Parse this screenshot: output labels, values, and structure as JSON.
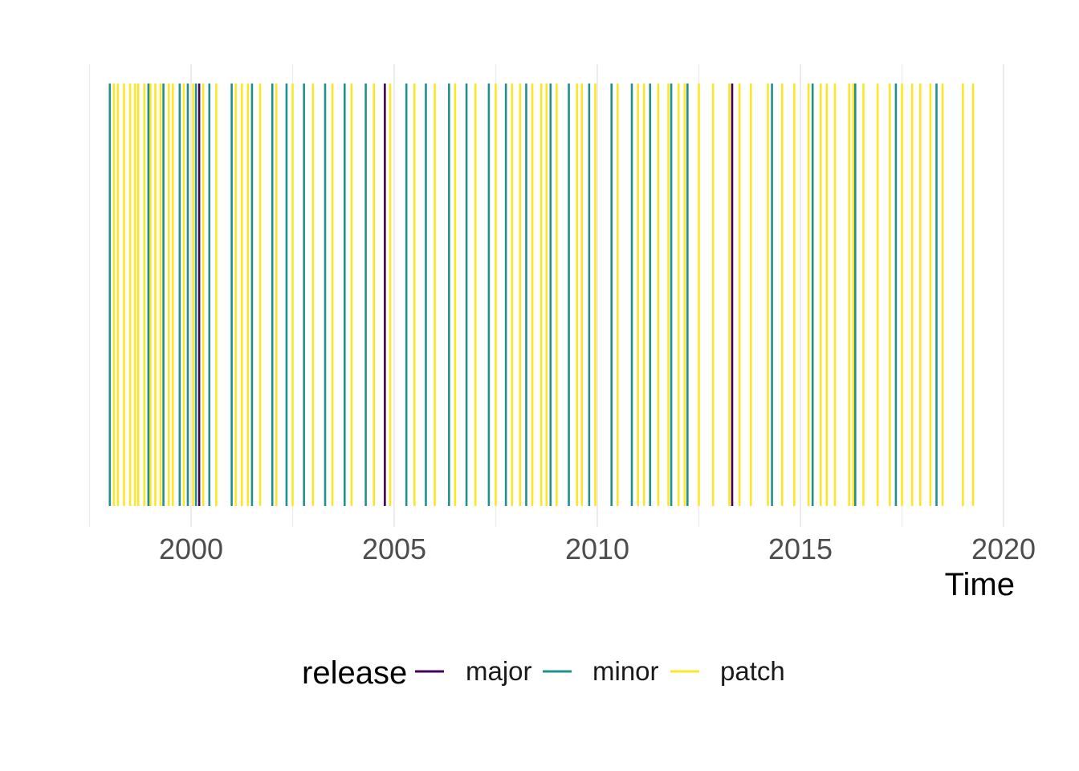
{
  "chart_data": {
    "type": "rug",
    "x_label": "Time",
    "x_ticks": [
      2000,
      2005,
      2010,
      2015,
      2020
    ],
    "xlim": [
      1997.5,
      2020
    ],
    "grid": "vertical major and minor gridlines only",
    "legend": {
      "title": "release",
      "position": "bottom",
      "entries": [
        {
          "label": "major",
          "color": "#440154"
        },
        {
          "label": "minor",
          "color": "#21908C"
        },
        {
          "label": "patch",
          "color": "#FDE725"
        }
      ]
    },
    "releases": [
      {
        "t": 1998.0,
        "type": "minor"
      },
      {
        "t": 1998.1,
        "type": "patch"
      },
      {
        "t": 1998.2,
        "type": "patch"
      },
      {
        "t": 1998.35,
        "type": "patch"
      },
      {
        "t": 1998.5,
        "type": "patch"
      },
      {
        "t": 1998.62,
        "type": "patch"
      },
      {
        "t": 1998.7,
        "type": "patch"
      },
      {
        "t": 1998.85,
        "type": "patch"
      },
      {
        "t": 1998.95,
        "type": "minor"
      },
      {
        "t": 1999.0,
        "type": "patch"
      },
      {
        "t": 1999.12,
        "type": "patch"
      },
      {
        "t": 1999.25,
        "type": "patch"
      },
      {
        "t": 1999.32,
        "type": "minor"
      },
      {
        "t": 1999.45,
        "type": "patch"
      },
      {
        "t": 1999.55,
        "type": "patch"
      },
      {
        "t": 1999.72,
        "type": "minor"
      },
      {
        "t": 1999.82,
        "type": "patch"
      },
      {
        "t": 1999.92,
        "type": "minor"
      },
      {
        "t": 2000.05,
        "type": "patch"
      },
      {
        "t": 2000.12,
        "type": "minor"
      },
      {
        "t": 2000.2,
        "type": "major"
      },
      {
        "t": 2000.3,
        "type": "patch"
      },
      {
        "t": 2000.45,
        "type": "minor"
      },
      {
        "t": 2000.62,
        "type": "patch"
      },
      {
        "t": 2001.0,
        "type": "minor"
      },
      {
        "t": 2001.1,
        "type": "patch"
      },
      {
        "t": 2001.25,
        "type": "patch"
      },
      {
        "t": 2001.4,
        "type": "patch"
      },
      {
        "t": 2001.5,
        "type": "minor"
      },
      {
        "t": 2001.7,
        "type": "patch"
      },
      {
        "t": 2002.0,
        "type": "minor"
      },
      {
        "t": 2002.1,
        "type": "patch"
      },
      {
        "t": 2002.35,
        "type": "minor"
      },
      {
        "t": 2002.5,
        "type": "patch"
      },
      {
        "t": 2002.78,
        "type": "minor"
      },
      {
        "t": 2003.0,
        "type": "patch"
      },
      {
        "t": 2003.3,
        "type": "minor"
      },
      {
        "t": 2003.48,
        "type": "patch"
      },
      {
        "t": 2003.78,
        "type": "minor"
      },
      {
        "t": 2003.95,
        "type": "patch"
      },
      {
        "t": 2004.3,
        "type": "minor"
      },
      {
        "t": 2004.5,
        "type": "patch"
      },
      {
        "t": 2004.77,
        "type": "major"
      },
      {
        "t": 2004.9,
        "type": "patch"
      },
      {
        "t": 2005.3,
        "type": "minor"
      },
      {
        "t": 2005.5,
        "type": "patch"
      },
      {
        "t": 2005.78,
        "type": "minor"
      },
      {
        "t": 2006.0,
        "type": "patch"
      },
      {
        "t": 2006.35,
        "type": "minor"
      },
      {
        "t": 2006.5,
        "type": "patch"
      },
      {
        "t": 2006.78,
        "type": "minor"
      },
      {
        "t": 2007.0,
        "type": "patch"
      },
      {
        "t": 2007.33,
        "type": "minor"
      },
      {
        "t": 2007.5,
        "type": "patch"
      },
      {
        "t": 2007.75,
        "type": "minor"
      },
      {
        "t": 2007.9,
        "type": "patch"
      },
      {
        "t": 2008.1,
        "type": "patch"
      },
      {
        "t": 2008.25,
        "type": "minor"
      },
      {
        "t": 2008.4,
        "type": "patch"
      },
      {
        "t": 2008.62,
        "type": "patch"
      },
      {
        "t": 2008.75,
        "type": "patch"
      },
      {
        "t": 2008.85,
        "type": "minor"
      },
      {
        "t": 2009.0,
        "type": "patch"
      },
      {
        "t": 2009.3,
        "type": "minor"
      },
      {
        "t": 2009.5,
        "type": "patch"
      },
      {
        "t": 2009.62,
        "type": "patch"
      },
      {
        "t": 2009.8,
        "type": "minor"
      },
      {
        "t": 2009.95,
        "type": "patch"
      },
      {
        "t": 2010.35,
        "type": "minor"
      },
      {
        "t": 2010.5,
        "type": "patch"
      },
      {
        "t": 2010.85,
        "type": "minor"
      },
      {
        "t": 2011.0,
        "type": "patch"
      },
      {
        "t": 2011.15,
        "type": "patch"
      },
      {
        "t": 2011.3,
        "type": "minor"
      },
      {
        "t": 2011.5,
        "type": "patch"
      },
      {
        "t": 2011.75,
        "type": "patch"
      },
      {
        "t": 2011.82,
        "type": "minor"
      },
      {
        "t": 2012.0,
        "type": "patch"
      },
      {
        "t": 2012.15,
        "type": "patch"
      },
      {
        "t": 2012.22,
        "type": "minor"
      },
      {
        "t": 2012.5,
        "type": "patch"
      },
      {
        "t": 2012.85,
        "type": "patch"
      },
      {
        "t": 2013.25,
        "type": "patch"
      },
      {
        "t": 2013.32,
        "type": "major"
      },
      {
        "t": 2013.5,
        "type": "patch"
      },
      {
        "t": 2013.78,
        "type": "patch"
      },
      {
        "t": 2014.2,
        "type": "patch"
      },
      {
        "t": 2014.3,
        "type": "minor"
      },
      {
        "t": 2014.55,
        "type": "patch"
      },
      {
        "t": 2014.85,
        "type": "patch"
      },
      {
        "t": 2015.2,
        "type": "patch"
      },
      {
        "t": 2015.3,
        "type": "minor"
      },
      {
        "t": 2015.5,
        "type": "patch"
      },
      {
        "t": 2015.65,
        "type": "patch"
      },
      {
        "t": 2015.85,
        "type": "patch"
      },
      {
        "t": 2016.2,
        "type": "patch"
      },
      {
        "t": 2016.3,
        "type": "patch"
      },
      {
        "t": 2016.35,
        "type": "minor"
      },
      {
        "t": 2016.55,
        "type": "patch"
      },
      {
        "t": 2016.9,
        "type": "patch"
      },
      {
        "t": 2017.2,
        "type": "patch"
      },
      {
        "t": 2017.35,
        "type": "minor"
      },
      {
        "t": 2017.5,
        "type": "patch"
      },
      {
        "t": 2017.75,
        "type": "patch"
      },
      {
        "t": 2017.95,
        "type": "patch"
      },
      {
        "t": 2018.2,
        "type": "patch"
      },
      {
        "t": 2018.35,
        "type": "minor"
      },
      {
        "t": 2018.5,
        "type": "patch"
      },
      {
        "t": 2019.0,
        "type": "patch"
      },
      {
        "t": 2019.25,
        "type": "patch"
      }
    ]
  }
}
